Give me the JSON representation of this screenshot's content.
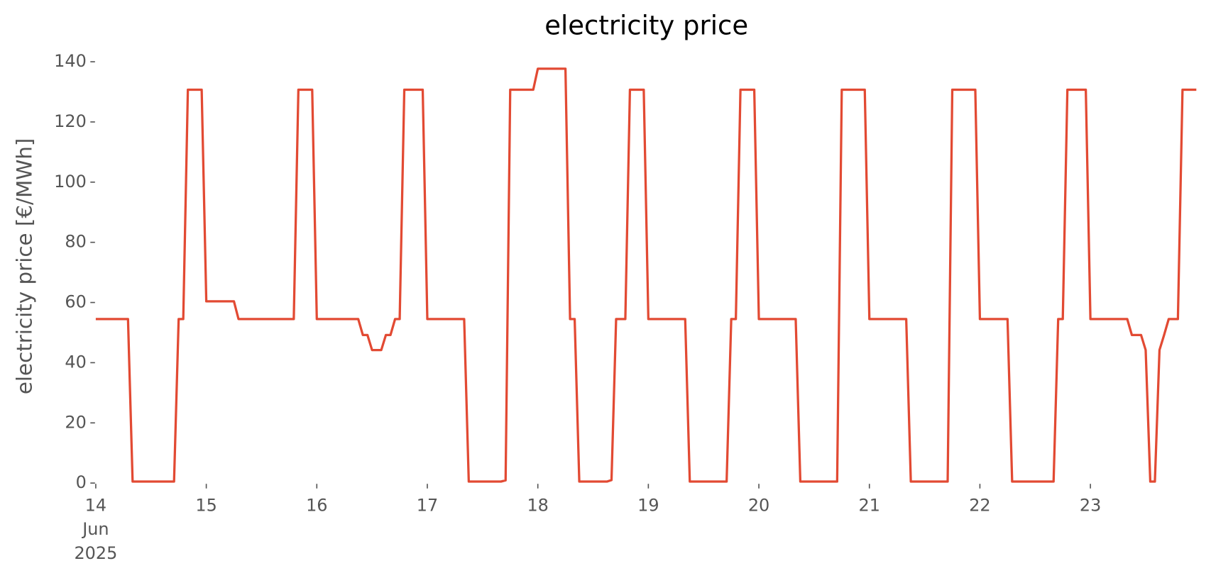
{
  "chart_data": {
    "type": "line",
    "title": "electricity price",
    "ylabel": "electricity price [€/MWh]",
    "color": "#e24a33",
    "x": [
      "2025-06-14 00:00",
      "2025-06-14 01:00",
      "2025-06-14 02:00",
      "2025-06-14 03:00",
      "2025-06-14 04:00",
      "2025-06-14 05:00",
      "2025-06-14 06:00",
      "2025-06-14 07:00",
      "2025-06-14 08:00",
      "2025-06-14 09:00",
      "2025-06-14 10:00",
      "2025-06-14 11:00",
      "2025-06-14 12:00",
      "2025-06-14 13:00",
      "2025-06-14 14:00",
      "2025-06-14 15:00",
      "2025-06-14 16:00",
      "2025-06-14 17:00",
      "2025-06-14 18:00",
      "2025-06-14 19:00",
      "2025-06-14 20:00",
      "2025-06-14 21:00",
      "2025-06-14 22:00",
      "2025-06-14 23:00",
      "2025-06-15 00:00",
      "2025-06-15 01:00",
      "2025-06-15 02:00",
      "2025-06-15 03:00",
      "2025-06-15 04:00",
      "2025-06-15 05:00",
      "2025-06-15 06:00",
      "2025-06-15 07:00",
      "2025-06-15 08:00",
      "2025-06-15 09:00",
      "2025-06-15 10:00",
      "2025-06-15 11:00",
      "2025-06-15 12:00",
      "2025-06-15 13:00",
      "2025-06-15 14:00",
      "2025-06-15 15:00",
      "2025-06-15 16:00",
      "2025-06-15 17:00",
      "2025-06-15 18:00",
      "2025-06-15 19:00",
      "2025-06-15 20:00",
      "2025-06-15 21:00",
      "2025-06-15 22:00",
      "2025-06-15 23:00",
      "2025-06-16 00:00",
      "2025-06-16 01:00",
      "2025-06-16 02:00",
      "2025-06-16 03:00",
      "2025-06-16 04:00",
      "2025-06-16 05:00",
      "2025-06-16 06:00",
      "2025-06-16 07:00",
      "2025-06-16 08:00",
      "2025-06-16 09:00",
      "2025-06-16 10:00",
      "2025-06-16 11:00",
      "2025-06-16 12:00",
      "2025-06-16 13:00",
      "2025-06-16 14:00",
      "2025-06-16 15:00",
      "2025-06-16 16:00",
      "2025-06-16 17:00",
      "2025-06-16 18:00",
      "2025-06-16 19:00",
      "2025-06-16 20:00",
      "2025-06-16 21:00",
      "2025-06-16 22:00",
      "2025-06-16 23:00",
      "2025-06-17 00:00",
      "2025-06-17 01:00",
      "2025-06-17 02:00",
      "2025-06-17 03:00",
      "2025-06-17 04:00",
      "2025-06-17 05:00",
      "2025-06-17 06:00",
      "2025-06-17 07:00",
      "2025-06-17 08:00",
      "2025-06-17 09:00",
      "2025-06-17 10:00",
      "2025-06-17 11:00",
      "2025-06-17 12:00",
      "2025-06-17 13:00",
      "2025-06-17 14:00",
      "2025-06-17 15:00",
      "2025-06-17 16:00",
      "2025-06-17 17:00",
      "2025-06-17 18:00",
      "2025-06-17 19:00",
      "2025-06-17 20:00",
      "2025-06-17 21:00",
      "2025-06-17 22:00",
      "2025-06-17 23:00",
      "2025-06-18 00:00",
      "2025-06-18 01:00",
      "2025-06-18 02:00",
      "2025-06-18 03:00",
      "2025-06-18 04:00",
      "2025-06-18 05:00",
      "2025-06-18 06:00",
      "2025-06-18 07:00",
      "2025-06-18 08:00",
      "2025-06-18 09:00",
      "2025-06-18 10:00",
      "2025-06-18 11:00",
      "2025-06-18 12:00",
      "2025-06-18 13:00",
      "2025-06-18 14:00",
      "2025-06-18 15:00",
      "2025-06-18 16:00",
      "2025-06-18 17:00",
      "2025-06-18 18:00",
      "2025-06-18 19:00",
      "2025-06-18 20:00",
      "2025-06-18 21:00",
      "2025-06-18 22:00",
      "2025-06-18 23:00",
      "2025-06-19 00:00",
      "2025-06-19 01:00",
      "2025-06-19 02:00",
      "2025-06-19 03:00",
      "2025-06-19 04:00",
      "2025-06-19 05:00",
      "2025-06-19 06:00",
      "2025-06-19 07:00",
      "2025-06-19 08:00",
      "2025-06-19 09:00",
      "2025-06-19 10:00",
      "2025-06-19 11:00",
      "2025-06-19 12:00",
      "2025-06-19 13:00",
      "2025-06-19 14:00",
      "2025-06-19 15:00",
      "2025-06-19 16:00",
      "2025-06-19 17:00",
      "2025-06-19 18:00",
      "2025-06-19 19:00",
      "2025-06-19 20:00",
      "2025-06-19 21:00",
      "2025-06-19 22:00",
      "2025-06-19 23:00",
      "2025-06-20 00:00",
      "2025-06-20 01:00",
      "2025-06-20 02:00",
      "2025-06-20 03:00",
      "2025-06-20 04:00",
      "2025-06-20 05:00",
      "2025-06-20 06:00",
      "2025-06-20 07:00",
      "2025-06-20 08:00",
      "2025-06-20 09:00",
      "2025-06-20 10:00",
      "2025-06-20 11:00",
      "2025-06-20 12:00",
      "2025-06-20 13:00",
      "2025-06-20 14:00",
      "2025-06-20 15:00",
      "2025-06-20 16:00",
      "2025-06-20 17:00",
      "2025-06-20 18:00",
      "2025-06-20 19:00",
      "2025-06-20 20:00",
      "2025-06-20 21:00",
      "2025-06-20 22:00",
      "2025-06-20 23:00",
      "2025-06-21 00:00",
      "2025-06-21 01:00",
      "2025-06-21 02:00",
      "2025-06-21 03:00",
      "2025-06-21 04:00",
      "2025-06-21 05:00",
      "2025-06-21 06:00",
      "2025-06-21 07:00",
      "2025-06-21 08:00",
      "2025-06-21 09:00",
      "2025-06-21 10:00",
      "2025-06-21 11:00",
      "2025-06-21 12:00",
      "2025-06-21 13:00",
      "2025-06-21 14:00",
      "2025-06-21 15:00",
      "2025-06-21 16:00",
      "2025-06-21 17:00",
      "2025-06-21 18:00",
      "2025-06-21 19:00",
      "2025-06-21 20:00",
      "2025-06-21 21:00",
      "2025-06-21 22:00",
      "2025-06-21 23:00",
      "2025-06-22 00:00",
      "2025-06-22 01:00",
      "2025-06-22 02:00",
      "2025-06-22 03:00",
      "2025-06-22 04:00",
      "2025-06-22 05:00",
      "2025-06-22 06:00",
      "2025-06-22 07:00",
      "2025-06-22 08:00",
      "2025-06-22 09:00",
      "2025-06-22 10:00",
      "2025-06-22 11:00",
      "2025-06-22 12:00",
      "2025-06-22 13:00",
      "2025-06-22 14:00",
      "2025-06-22 15:00",
      "2025-06-22 16:00",
      "2025-06-22 17:00",
      "2025-06-22 18:00",
      "2025-06-22 19:00",
      "2025-06-22 20:00",
      "2025-06-22 21:00",
      "2025-06-22 22:00",
      "2025-06-22 23:00",
      "2025-06-23 00:00",
      "2025-06-23 01:00",
      "2025-06-23 02:00",
      "2025-06-23 03:00",
      "2025-06-23 04:00",
      "2025-06-23 05:00",
      "2025-06-23 06:00",
      "2025-06-23 07:00",
      "2025-06-23 08:00",
      "2025-06-23 09:00",
      "2025-06-23 10:00",
      "2025-06-23 11:00",
      "2025-06-23 12:00",
      "2025-06-23 13:00",
      "2025-06-23 14:00",
      "2025-06-23 15:00",
      "2025-06-23 16:00",
      "2025-06-23 17:00",
      "2025-06-23 18:00",
      "2025-06-23 19:00",
      "2025-06-23 20:00",
      "2025-06-23 21:00",
      "2025-06-23 22:00",
      "2025-06-23 23:00"
    ],
    "values": [
      54.5,
      54.5,
      54.5,
      54.5,
      54.5,
      54.5,
      54.5,
      54.5,
      0.5,
      0.5,
      0.5,
      0.5,
      0.5,
      0.5,
      0.5,
      0.5,
      0.5,
      0.5,
      54.5,
      54.5,
      130.7,
      130.7,
      130.7,
      130.7,
      60.4,
      60.4,
      60.4,
      60.4,
      60.4,
      60.4,
      60.4,
      54.5,
      54.5,
      54.5,
      54.5,
      54.5,
      54.5,
      54.5,
      54.5,
      54.5,
      54.5,
      54.5,
      54.5,
      54.5,
      130.7,
      130.7,
      130.7,
      130.7,
      54.5,
      54.5,
      54.5,
      54.5,
      54.5,
      54.5,
      54.5,
      54.5,
      54.5,
      54.5,
      49.2,
      49.2,
      44.2,
      44.2,
      44.2,
      49.2,
      49.2,
      54.5,
      54.5,
      130.7,
      130.7,
      130.7,
      130.7,
      130.7,
      54.5,
      54.5,
      54.5,
      54.5,
      54.5,
      54.5,
      54.5,
      54.5,
      54.5,
      0.5,
      0.5,
      0.5,
      0.5,
      0.5,
      0.5,
      0.5,
      0.5,
      0.9,
      130.7,
      130.7,
      130.7,
      130.7,
      130.7,
      130.7,
      137.7,
      137.7,
      137.7,
      137.7,
      137.7,
      137.7,
      137.7,
      54.5,
      54.5,
      0.5,
      0.5,
      0.5,
      0.5,
      0.5,
      0.5,
      0.5,
      1.0,
      54.5,
      54.5,
      54.5,
      130.7,
      130.7,
      130.7,
      130.7,
      54.5,
      54.5,
      54.5,
      54.5,
      54.5,
      54.5,
      54.5,
      54.5,
      54.5,
      0.5,
      0.5,
      0.5,
      0.5,
      0.5,
      0.5,
      0.5,
      0.5,
      0.5,
      54.5,
      54.5,
      130.7,
      130.7,
      130.7,
      130.7,
      54.5,
      54.5,
      54.5,
      54.5,
      54.5,
      54.5,
      54.5,
      54.5,
      54.5,
      0.5,
      0.5,
      0.5,
      0.5,
      0.5,
      0.5,
      0.5,
      0.5,
      0.5,
      130.7,
      130.7,
      130.7,
      130.7,
      130.7,
      130.7,
      54.5,
      54.5,
      54.5,
      54.5,
      54.5,
      54.5,
      54.5,
      54.5,
      54.5,
      0.5,
      0.5,
      0.5,
      0.5,
      0.5,
      0.5,
      0.5,
      0.5,
      0.5,
      130.7,
      130.7,
      130.7,
      130.7,
      130.7,
      130.7,
      54.5,
      54.5,
      54.5,
      54.5,
      54.5,
      54.5,
      54.5,
      0.5,
      0.5,
      0.5,
      0.5,
      0.5,
      0.5,
      0.5,
      0.5,
      0.5,
      0.5,
      54.5,
      54.5,
      130.7,
      130.7,
      130.7,
      130.7,
      130.7,
      54.5,
      54.5,
      54.5,
      54.5,
      54.5,
      54.5,
      54.5,
      54.5,
      54.5,
      49.2,
      49.2,
      49.2,
      44.2,
      0.5,
      0.5,
      44.2,
      49.2,
      54.5,
      54.5,
      54.5,
      130.7,
      130.7,
      130.7,
      130.7
    ],
    "xlim": [
      "2025-06-14 00:00",
      "2025-06-23 23:00"
    ],
    "xticks": [
      {
        "value": "2025-06-14 00:00",
        "label": "14\nJun\n2025"
      },
      {
        "value": "2025-06-15 00:00",
        "label": "15"
      },
      {
        "value": "2025-06-16 00:00",
        "label": "16"
      },
      {
        "value": "2025-06-17 00:00",
        "label": "17"
      },
      {
        "value": "2025-06-18 00:00",
        "label": "18"
      },
      {
        "value": "2025-06-19 00:00",
        "label": "19"
      },
      {
        "value": "2025-06-20 00:00",
        "label": "20"
      },
      {
        "value": "2025-06-21 00:00",
        "label": "21"
      },
      {
        "value": "2025-06-22 00:00",
        "label": "22"
      },
      {
        "value": "2025-06-23 00:00",
        "label": "23"
      }
    ],
    "ylim": [
      0,
      140
    ],
    "yticks": [
      0,
      20,
      40,
      60,
      80,
      100,
      120,
      140
    ],
    "grid": false
  }
}
